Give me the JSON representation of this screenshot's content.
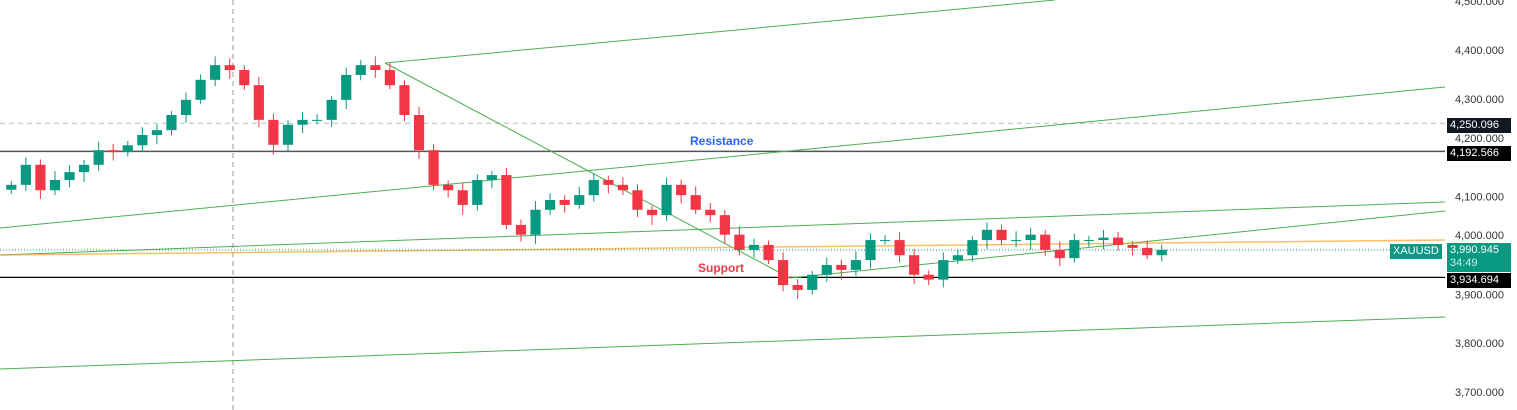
{
  "chart_data": {
    "type": "candlestick",
    "symbol": "XAUUSD",
    "ylim": [
      3690,
      4505
    ],
    "y_ticks": [
      4500,
      4400,
      4300,
      4200,
      4100,
      4000,
      3900,
      3800,
      3700
    ],
    "y_tick_labels": [
      "4,500.000",
      "4,400.000",
      "4,300.000",
      "4,200.000",
      "4,100.000",
      "4,000.000",
      "3,900.000",
      "3,800.000",
      "3,700.000"
    ],
    "closes": [
      4124,
      4165,
      4113,
      4134,
      4150,
      4165,
      4195,
      4191,
      4205,
      4226,
      4236,
      4267,
      4298,
      4339,
      4369,
      4359,
      4328,
      4257,
      4206,
      4247,
      4257,
      4257,
      4298,
      4349,
      4369,
      4359,
      4328,
      4267,
      4195,
      4124,
      4113,
      4083,
      4134,
      4144,
      4042,
      4022,
      4073,
      4093,
      4083,
      4103,
      4134,
      4124,
      4113,
      4073,
      4062,
      4124,
      4103,
      4073,
      4062,
      4022,
      3991,
      4001,
      3970,
      3919,
      3909,
      3940,
      3960,
      3950,
      3970,
      4011,
      4011,
      3980,
      3940,
      3930,
      3970,
      3980,
      4011,
      4032,
      4011,
      4011,
      4022,
      3991,
      3974,
      4011,
      4011,
      4016,
      4001,
      3995,
      3980,
      3991
    ],
    "colors": {
      "up": "#089981",
      "down": "#f23645",
      "trendline": "#4caf50",
      "moving_line": "#f5a623"
    },
    "levels": {
      "alert_dashed": {
        "value": 4250.096,
        "label": "4,250.096"
      },
      "resistance": {
        "value": 4192.566,
        "label": "4,192.566",
        "text": "Resistance",
        "color": "#2962ff"
      },
      "support": {
        "value": 3934.694,
        "label": "3,934.694",
        "text": "Support",
        "color": "#f23645"
      }
    },
    "last_price": {
      "symbol": "XAUUSD",
      "value": "3,990.945",
      "countdown": "34:49",
      "color": "#089981"
    }
  }
}
